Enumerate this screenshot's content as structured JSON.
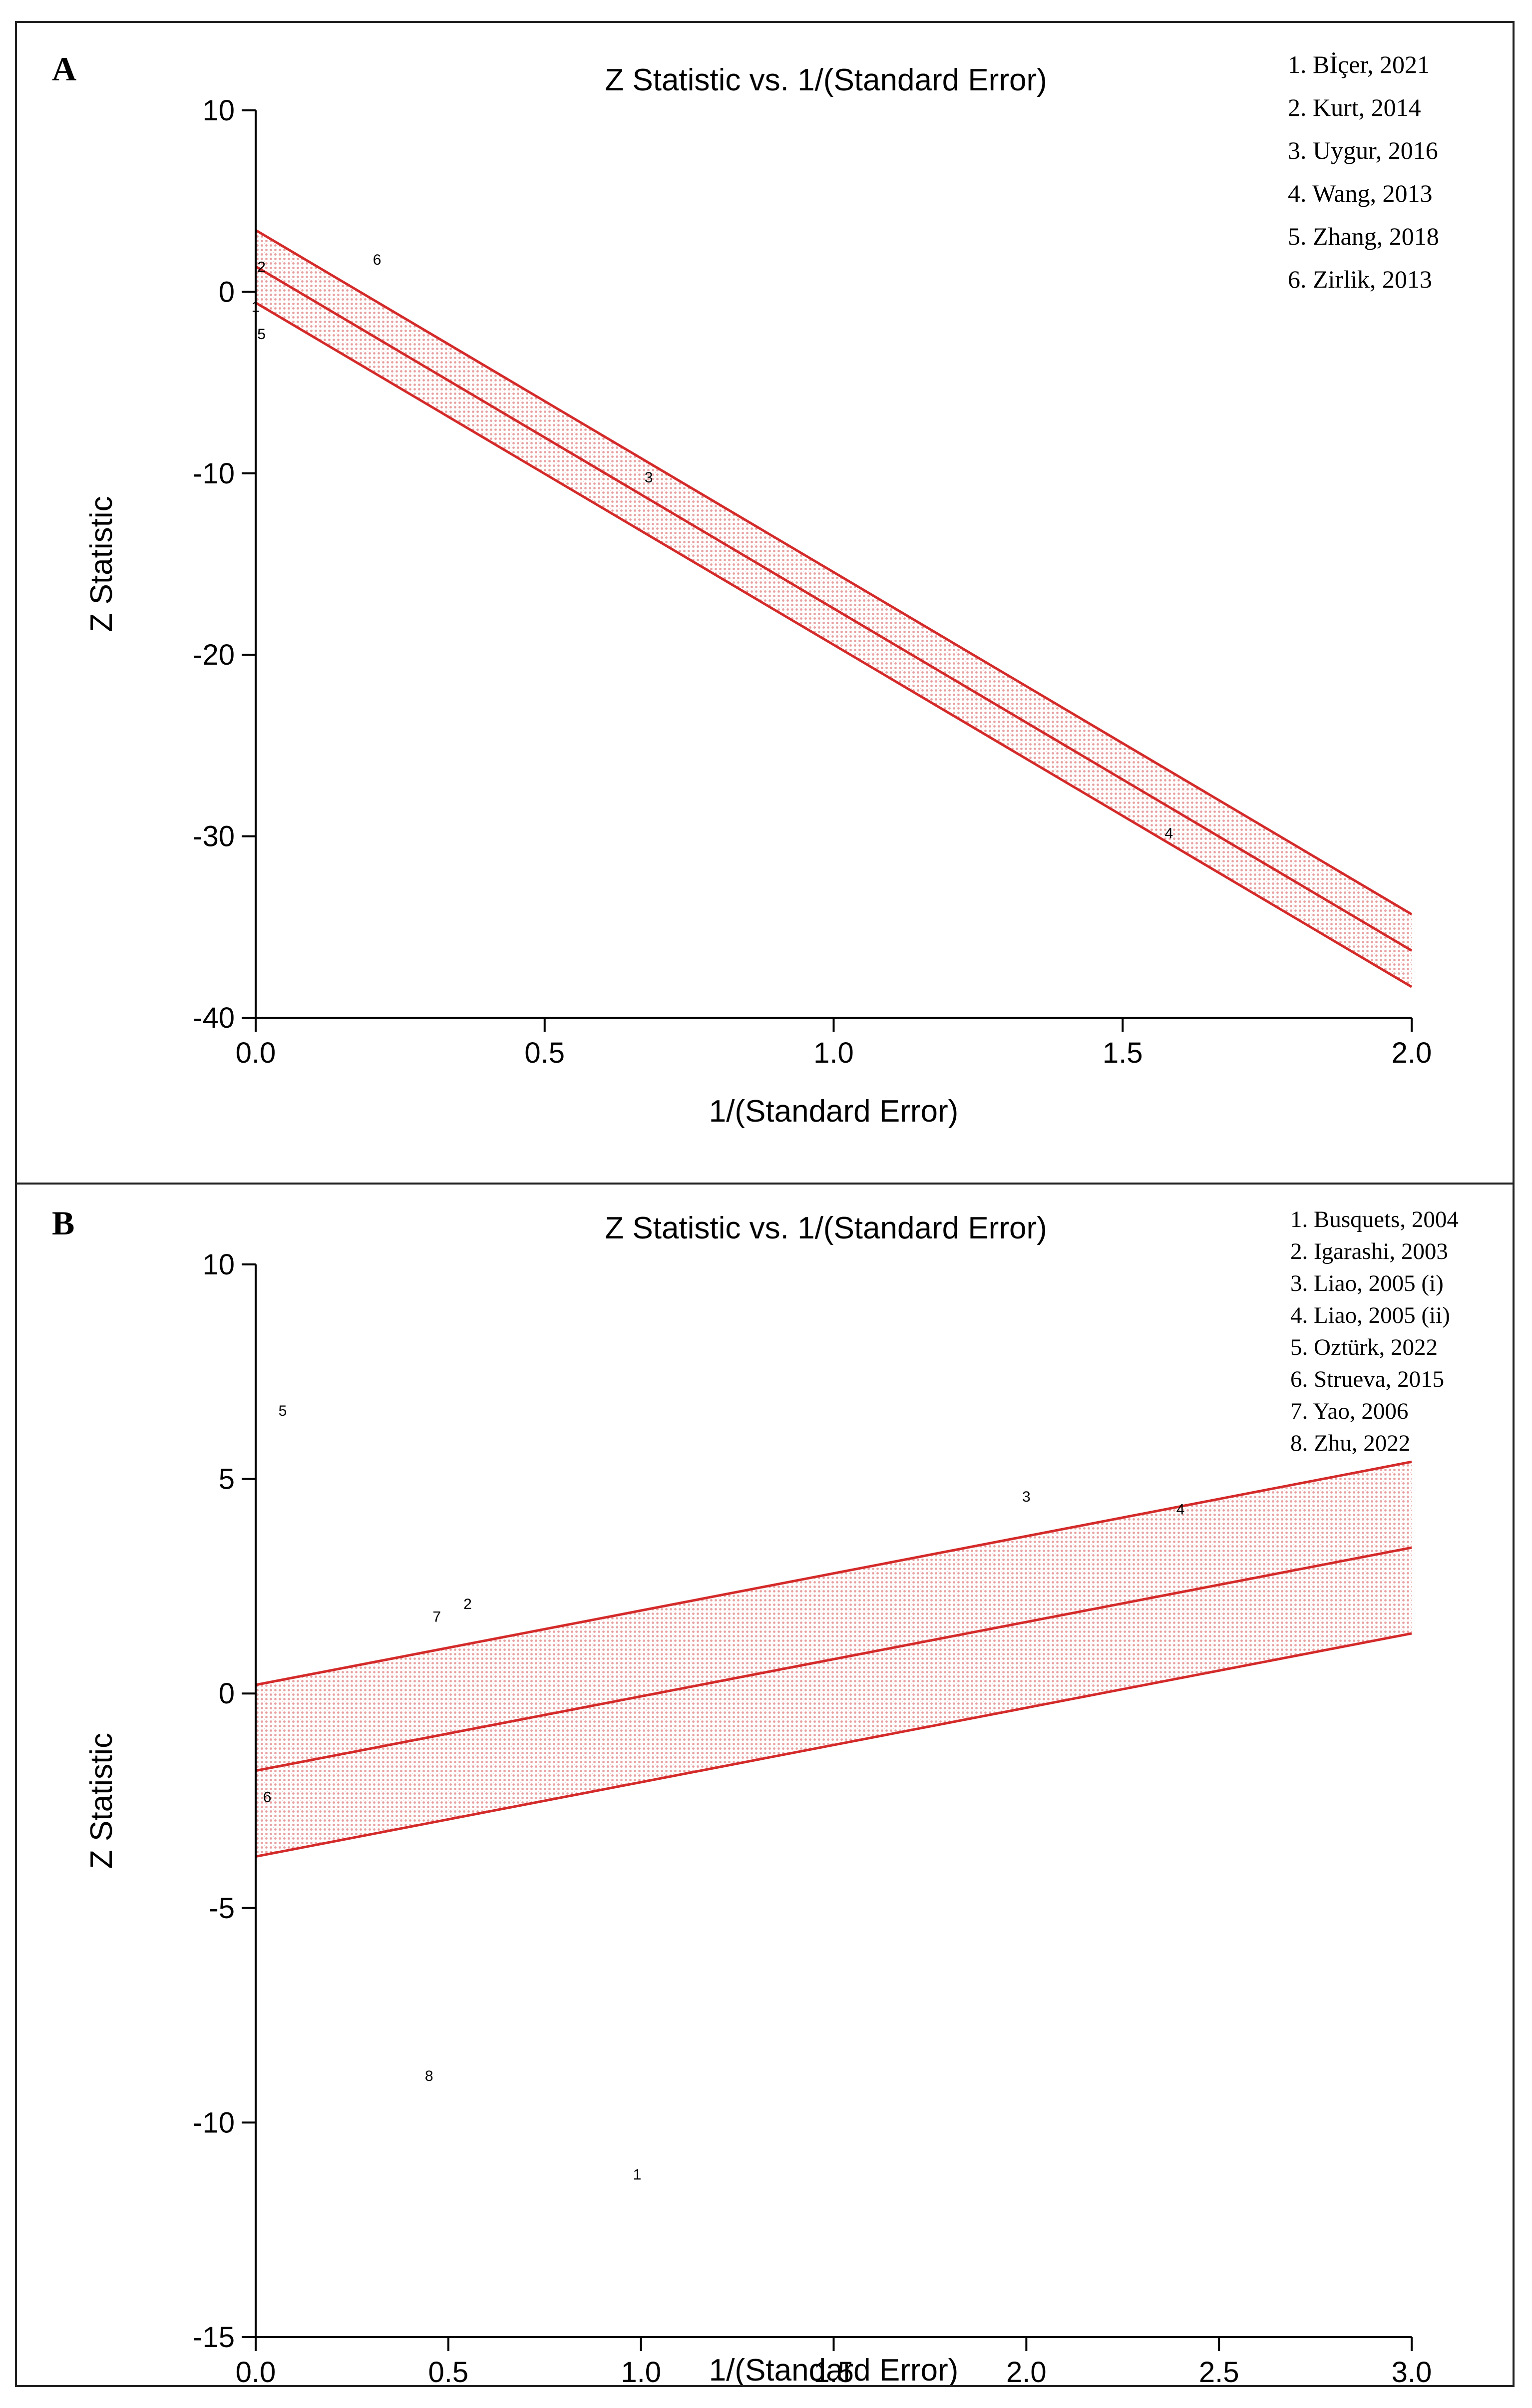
{
  "chart_data": [
    {
      "type": "scatter",
      "panel_label": "A",
      "title": "Z Statistic vs. 1/(Standard Error)",
      "xlabel": "1/(Standard Error)",
      "ylabel": "Z Statistic",
      "xlim": [
        0,
        2
      ],
      "ylim": [
        -40,
        10
      ],
      "xticks": [
        0.0,
        0.5,
        1.0,
        1.5,
        2.0
      ],
      "xtick_labels": [
        "0.0",
        "0.5",
        "1.0",
        "1.5",
        "2.0"
      ],
      "yticks": [
        10,
        0,
        -10,
        -20,
        -30,
        -40
      ],
      "ytick_labels": [
        "10",
        "0",
        "-10",
        "-20",
        "-30",
        "-40"
      ],
      "grid": false,
      "legend_position": "top-right",
      "legend": [
        "1. Bİçer, 2021",
        "2. Kurt, 2014",
        "3. Uygur, 2016",
        "4. Wang, 2013",
        "5. Zhang, 2018",
        "6. Zirlik, 2013"
      ],
      "points": [
        {
          "label": "1",
          "x": 0.0,
          "y": -0.8
        },
        {
          "label": "2",
          "x": 0.01,
          "y": 1.4
        },
        {
          "label": "3",
          "x": 0.68,
          "y": -10.2
        },
        {
          "label": "4",
          "x": 1.58,
          "y": -29.8
        },
        {
          "label": "5",
          "x": 0.01,
          "y": -2.3
        },
        {
          "label": "6",
          "x": 0.21,
          "y": 1.8
        }
      ],
      "regression": {
        "x0": 0,
        "y0": 1.4,
        "x1": 2,
        "y1": -36.3
      },
      "band": {
        "upper_x0": 3.4,
        "upper_x2": -34.3,
        "lower_x0": -0.6,
        "lower_x2": -38.3
      },
      "colors": {
        "line": "#d42a2a",
        "band_fill": "#e8a0a0",
        "axis": "#000000"
      }
    },
    {
      "type": "scatter",
      "panel_label": "B",
      "title": "Z Statistic vs. 1/(Standard Error)",
      "xlabel": "1/(Standard Error)",
      "ylabel": "Z Statistic",
      "xlim": [
        0,
        3
      ],
      "ylim": [
        -15,
        10
      ],
      "xticks": [
        0.0,
        0.5,
        1.0,
        1.5,
        2.0,
        2.5,
        3.0
      ],
      "xtick_labels": [
        "0.0",
        "0.5",
        "1.0",
        "1.5",
        "2.0",
        "2.5",
        "3.0"
      ],
      "yticks": [
        10,
        5,
        0,
        -5,
        -10,
        -15
      ],
      "ytick_labels": [
        "10",
        "5",
        "0",
        "-5",
        "-10",
        "-15"
      ],
      "grid": false,
      "legend_position": "top-right",
      "legend": [
        "1. Busquets, 2004",
        "2. Igarashi, 2003",
        "3. Liao, 2005 (i)",
        "4. Liao, 2005 (ii)",
        "5. Oztürk, 2022",
        "6. Strueva, 2015",
        "7. Yao, 2006",
        "8. Zhu, 2022"
      ],
      "points": [
        {
          "label": "1",
          "x": 0.99,
          "y": -11.2
        },
        {
          "label": "2",
          "x": 0.55,
          "y": 2.1
        },
        {
          "label": "3",
          "x": 2.0,
          "y": 4.6
        },
        {
          "label": "4",
          "x": 2.4,
          "y": 4.3
        },
        {
          "label": "5",
          "x": 0.07,
          "y": 6.6
        },
        {
          "label": "6",
          "x": 0.03,
          "y": -2.4
        },
        {
          "label": "7",
          "x": 0.47,
          "y": 1.8
        },
        {
          "label": "8",
          "x": 0.45,
          "y": -8.9
        }
      ],
      "regression": {
        "x0": 0,
        "y0": -1.8,
        "x1": 3,
        "y1": 3.4
      },
      "band": {
        "upper_x0": 0.2,
        "upper_x2": 5.4,
        "lower_x0": -3.8,
        "lower_x2": 1.4
      },
      "colors": {
        "line": "#d42a2a",
        "band_fill": "#e8a0a0",
        "axis": "#000000"
      }
    }
  ]
}
